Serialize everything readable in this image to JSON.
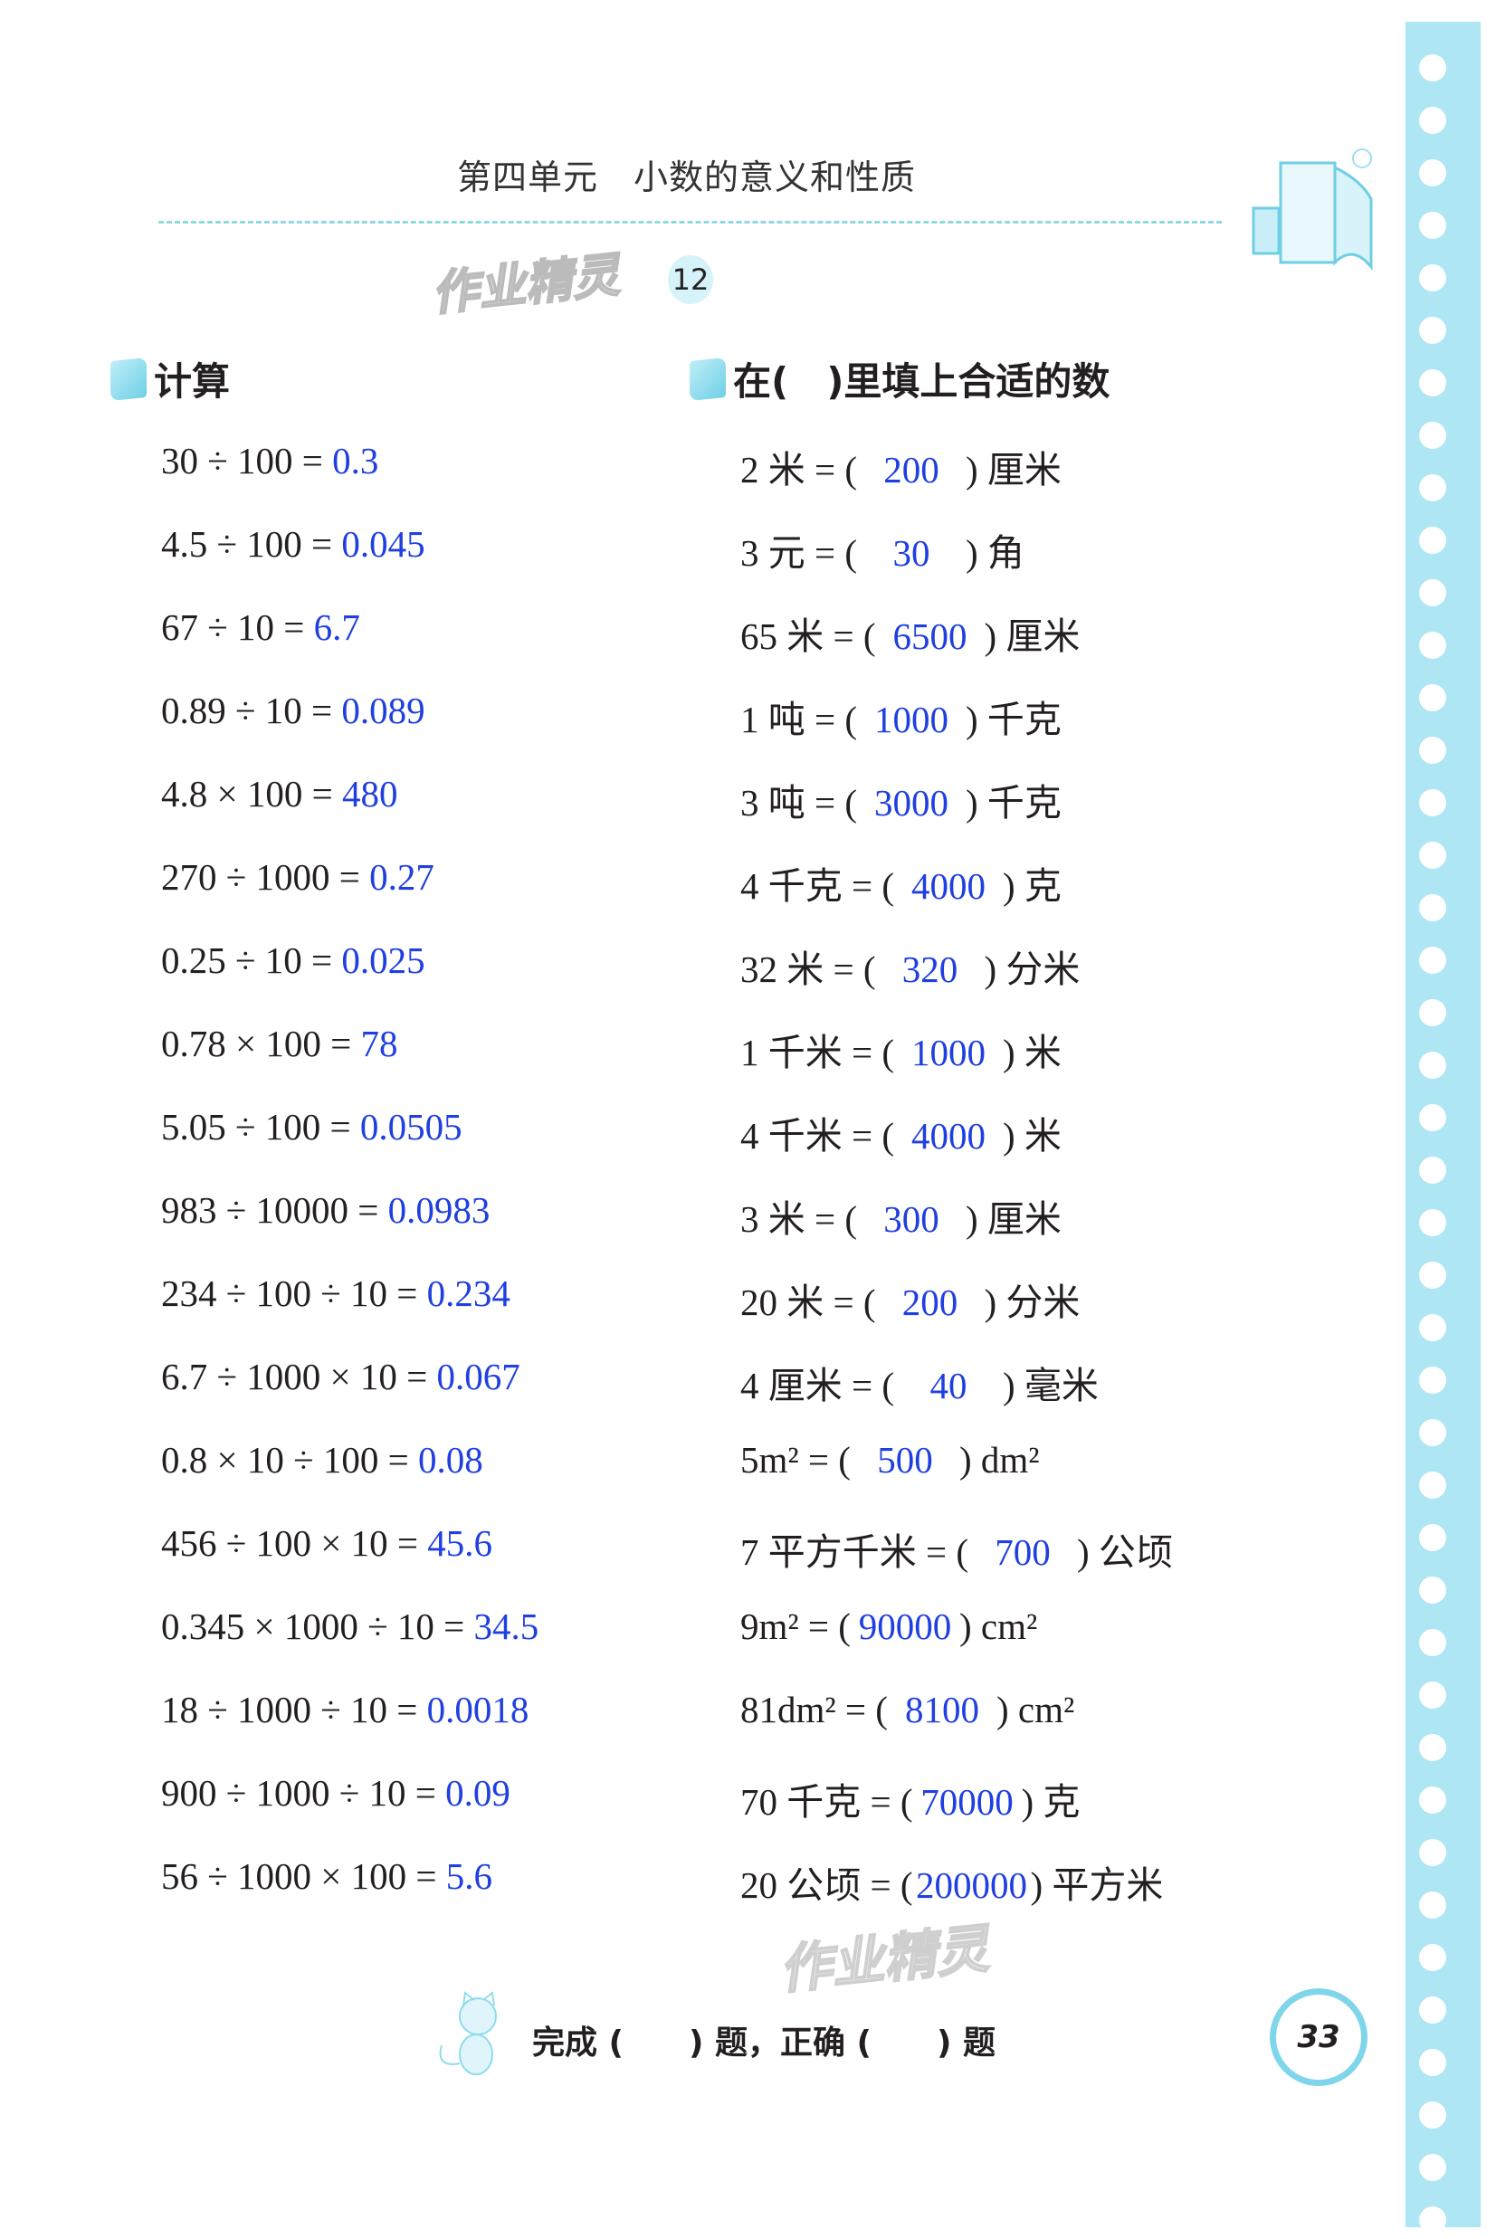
{
  "header": {
    "title": "第四单元　小数的意义和性质",
    "watermark": "作业精灵",
    "lesson_number": "12"
  },
  "section_left": {
    "title": "计算",
    "items": [
      {
        "q": "30 ÷ 100 = ",
        "a": "0.3"
      },
      {
        "q": "4.5 ÷ 100 = ",
        "a": "0.045"
      },
      {
        "q": "67 ÷ 10 = ",
        "a": "6.7"
      },
      {
        "q": "0.89 ÷ 10 = ",
        "a": "0.089"
      },
      {
        "q": "4.8 × 100 = ",
        "a": "480"
      },
      {
        "q": "270 ÷ 1000 = ",
        "a": "0.27"
      },
      {
        "q": "0.25 ÷ 10 = ",
        "a": "0.025"
      },
      {
        "q": "0.78 × 100 = ",
        "a": "78"
      },
      {
        "q": "5.05 ÷ 100 = ",
        "a": "0.0505"
      },
      {
        "q": "983 ÷ 10000 = ",
        "a": "0.0983"
      },
      {
        "q": "234 ÷ 100 ÷ 10 = ",
        "a": "0.234"
      },
      {
        "q": "6.7 ÷ 1000 × 10 = ",
        "a": "0.067"
      },
      {
        "q": "0.8 × 10 ÷ 100 = ",
        "a": "0.08"
      },
      {
        "q": "456 ÷ 100 × 10 = ",
        "a": "45.6"
      },
      {
        "q": "0.345 × 1000 ÷ 10 = ",
        "a": "34.5"
      },
      {
        "q": "18 ÷ 1000 ÷ 10 = ",
        "a": "0.0018"
      },
      {
        "q": "900 ÷ 1000 ÷ 10 = ",
        "a": "0.09"
      },
      {
        "q": "56 ÷ 1000 × 100 = ",
        "a": "5.6"
      }
    ]
  },
  "section_right": {
    "title": "在(　)里填上合适的数",
    "items": [
      {
        "pre": "2 米 = (",
        "a": "200",
        "post": ") 厘米"
      },
      {
        "pre": "3 元 = (",
        "a": "30",
        "post": ") 角"
      },
      {
        "pre": "65 米 = (",
        "a": "6500",
        "post": ") 厘米"
      },
      {
        "pre": "1 吨 = (",
        "a": "1000",
        "post": ") 千克"
      },
      {
        "pre": "3 吨 = (",
        "a": "3000",
        "post": ") 千克"
      },
      {
        "pre": "4 千克 = (",
        "a": "4000",
        "post": ") 克"
      },
      {
        "pre": "32 米 = (",
        "a": "320",
        "post": ") 分米"
      },
      {
        "pre": "1 千米 = (",
        "a": "1000",
        "post": ") 米"
      },
      {
        "pre": "4 千米 = (",
        "a": "4000",
        "post": ") 米"
      },
      {
        "pre": "3 米 = (",
        "a": "300",
        "post": ") 厘米"
      },
      {
        "pre": "20 米 = (",
        "a": "200",
        "post": ") 分米"
      },
      {
        "pre": "4 厘米 = (",
        "a": "40",
        "post": ") 毫米"
      },
      {
        "pre": "5m² = (",
        "a": "500",
        "post": ") dm²"
      },
      {
        "pre": "7 平方千米 = (",
        "a": "700",
        "post": ") 公顷"
      },
      {
        "pre": "9m² = (",
        "a": "90000",
        "post": ") cm²"
      },
      {
        "pre": "81dm² = (",
        "a": "8100",
        "post": ") cm²"
      },
      {
        "pre": "70 千克 = (",
        "a": "70000",
        "post": ") 克"
      },
      {
        "pre": "20 公顷 = (",
        "a": "200000",
        "post": ") 平方米"
      }
    ]
  },
  "footer": {
    "text": "完成 (　　) 题，正确 (　　) 题",
    "page_number": "33"
  },
  "colors": {
    "answer": "#1f3fe0",
    "accent": "#7fd6ea"
  }
}
